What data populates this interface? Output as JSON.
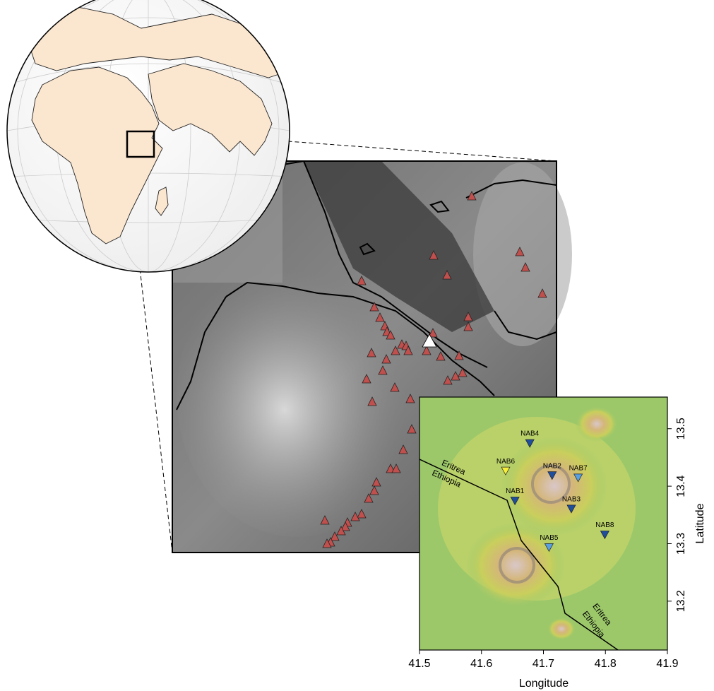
{
  "inset": {
    "xlim": [
      41.5,
      41.9
    ],
    "ylim": [
      13.115,
      13.555
    ],
    "xticks": [
      41.5,
      41.6,
      41.7,
      41.8,
      41.9
    ],
    "yticks": [
      13.2,
      13.3,
      13.4,
      13.5
    ],
    "xlabel": "Longitude",
    "ylabel": "Latitude",
    "stations": [
      {
        "name": "NAB4",
        "lon": 41.678,
        "lat": 13.475,
        "color": "#1f4e9c"
      },
      {
        "name": "NAB6",
        "lon": 41.639,
        "lat": 13.427,
        "color": "#f5ef3a"
      },
      {
        "name": "NAB2",
        "lon": 41.714,
        "lat": 13.419,
        "color": "#1f4e9c"
      },
      {
        "name": "NAB7",
        "lon": 41.756,
        "lat": 13.415,
        "color": "#5aa0e0"
      },
      {
        "name": "NAB1",
        "lon": 41.654,
        "lat": 13.375,
        "color": "#1f4e9c"
      },
      {
        "name": "NAB3",
        "lon": 41.745,
        "lat": 13.361,
        "color": "#1f4e9c"
      },
      {
        "name": "NAB8",
        "lon": 41.799,
        "lat": 13.316,
        "color": "#1f4e9c"
      },
      {
        "name": "NAB5",
        "lon": 41.709,
        "lat": 13.294,
        "color": "#5aa0e0"
      }
    ],
    "border_labels": [
      "Eritrea",
      "Ethiopia",
      "Eritrea",
      "Ethiopia"
    ]
  }
}
